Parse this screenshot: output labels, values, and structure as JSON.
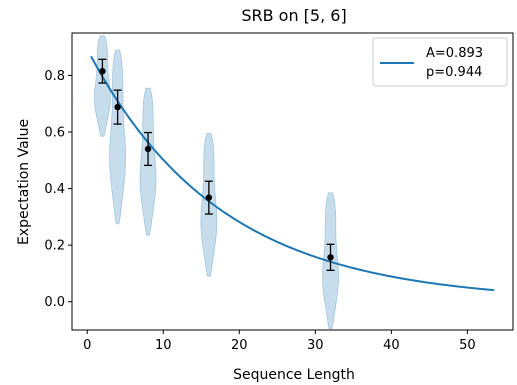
{
  "chart_data": {
    "type": "scatter",
    "title": "SRB on [5, 6]",
    "xlabel": "Sequence Length",
    "ylabel": "Expectation Value",
    "xlim": [
      -2,
      56
    ],
    "ylim": [
      -0.1,
      0.95
    ],
    "xticks": [
      0,
      10,
      20,
      30,
      40,
      50
    ],
    "yticks": [
      0.0,
      0.2,
      0.4,
      0.6,
      0.8
    ],
    "xtick_labels": [
      "0",
      "10",
      "20",
      "30",
      "40",
      "50"
    ],
    "ytick_labels": [
      "0.0",
      "0.2",
      "0.4",
      "0.6",
      "0.8"
    ],
    "grid": false,
    "legend": {
      "placement": "top-right",
      "label_line1": "A=0.893",
      "label_line2": "p=0.944"
    },
    "fit_curve": {
      "A": 0.893,
      "p": 0.944,
      "x_range": [
        0.5,
        53.5
      ],
      "color": "#1f77b4"
    },
    "means": {
      "x": [
        2,
        4,
        8,
        16,
        32
      ],
      "y": [
        0.815,
        0.688,
        0.54,
        0.368,
        0.157
      ],
      "yerr": [
        0.042,
        0.06,
        0.058,
        0.058,
        0.046
      ]
    },
    "violins": [
      {
        "x": 2,
        "min": 0.585,
        "max": 0.94
      },
      {
        "x": 4,
        "min": 0.275,
        "max": 0.89
      },
      {
        "x": 8,
        "min": 0.235,
        "max": 0.755
      },
      {
        "x": 16,
        "min": 0.09,
        "max": 0.595
      },
      {
        "x": 32,
        "min": -0.095,
        "max": 0.385
      }
    ],
    "violin_color": "#1f77b4",
    "mean_color": "#000000"
  }
}
